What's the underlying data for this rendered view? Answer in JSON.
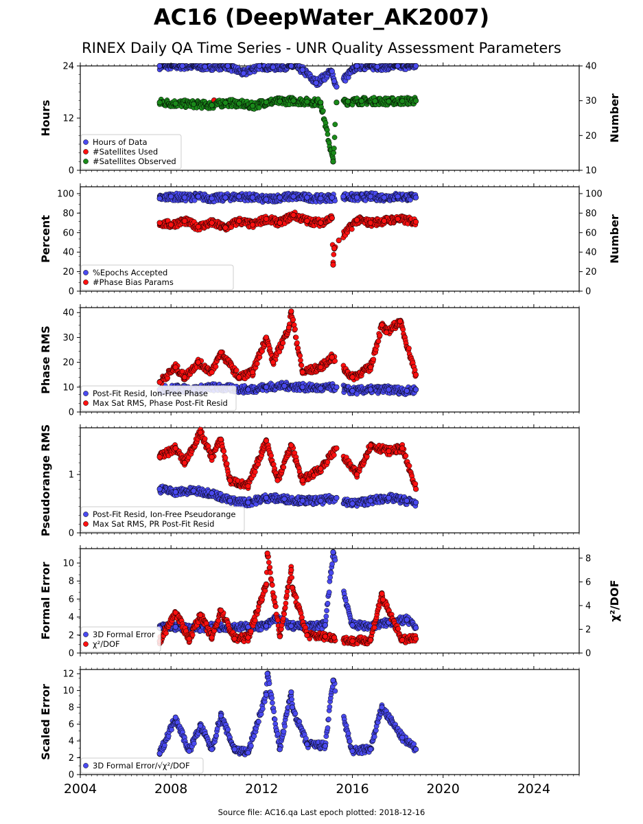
{
  "title": "AC16 (DeepWater_AK2007)",
  "subtitle": "RINEX Daily QA Time Series - UNR Quality Assessment Parameters",
  "footer": "Source file: AC16.qa Last epoch plotted: 2018-12-16",
  "colors": {
    "blue": "#4a4af0",
    "red": "#ff1010",
    "green": "#1a8a1a",
    "edge": "#000000"
  },
  "chart_data": [
    {
      "type": "scatter",
      "ylabel": "Hours",
      "y2label": "Number",
      "xlim": [
        2004,
        2026
      ],
      "ylim": [
        0,
        24
      ],
      "yticks": [
        "0",
        "12",
        "24"
      ],
      "y2lim": [
        10,
        40
      ],
      "y2ticks": [
        "10",
        "20",
        "30",
        "40"
      ],
      "legend": "lower-left",
      "series": [
        {
          "name": "Hours of Data",
          "color": "blue",
          "axis": "left",
          "x": [
            2007.5,
            2008.5,
            2009.5,
            2010.5,
            2011.2,
            2011.9,
            2012.5,
            2013.3,
            2013.8,
            2014.4,
            2015.1,
            2015.2,
            2015.3,
            2016.2,
            2017.1,
            2018.0,
            2018.8
          ],
          "y": [
            24,
            24,
            23.8,
            24,
            22.3,
            24,
            23.7,
            24,
            23.1,
            20.1,
            22.8,
            20.5,
            19.2,
            24,
            23.8,
            24,
            24
          ]
        },
        {
          "name": "#Satellites Used",
          "color": "red",
          "axis": "right",
          "x": [
            2009.9,
            2015.15
          ],
          "y": [
            30.1,
            12.5
          ]
        },
        {
          "name": "#Satellites Observed",
          "color": "green",
          "axis": "right",
          "x": [
            2007.5,
            2008.2,
            2009.0,
            2009.8,
            2010.4,
            2011.0,
            2011.6,
            2012.2,
            2012.8,
            2013.4,
            2014.0,
            2014.6,
            2015.15,
            2015.3,
            2015.8,
            2016.4,
            2017.0,
            2017.6,
            2018.2,
            2018.8
          ],
          "y": [
            29.5,
            29.2,
            29.0,
            28.7,
            29.4,
            29.2,
            28.5,
            29.6,
            29.8,
            30.0,
            29.7,
            29.5,
            12.5,
            29.5,
            29.8,
            29.9,
            29.9,
            29.8,
            29.9,
            30.0
          ]
        }
      ]
    },
    {
      "type": "scatter",
      "ylabel": "Percent",
      "y2label": "Number",
      "xlim": [
        2004,
        2026
      ],
      "ylim": [
        0,
        107
      ],
      "yticks": [
        "0",
        "20",
        "40",
        "60",
        "80",
        "100"
      ],
      "y2lim": [
        0,
        107
      ],
      "y2ticks": [
        "0",
        "20",
        "40",
        "60",
        "80",
        "100"
      ],
      "legend": "lower-left",
      "series": [
        {
          "name": "%Epochs Accepted",
          "color": "blue",
          "axis": "left",
          "x": [
            2007.5,
            2008.0,
            2008.6,
            2009.2,
            2009.8,
            2010.4,
            2011.0,
            2011.6,
            2012.2,
            2012.8,
            2013.4,
            2014.0,
            2014.6,
            2015.1,
            2015.6,
            2016.2,
            2016.8,
            2017.4,
            2018.0,
            2018.8
          ],
          "y": [
            95,
            97,
            96,
            97,
            95,
            96,
            97,
            96,
            94,
            96,
            97,
            96,
            95,
            96,
            97,
            96,
            97,
            96,
            97,
            96
          ]
        },
        {
          "name": "#Phase Bias Params",
          "color": "red",
          "axis": "right",
          "x": [
            2007.5,
            2008.0,
            2008.6,
            2009.2,
            2009.8,
            2010.4,
            2011.0,
            2011.6,
            2012.2,
            2012.8,
            2013.4,
            2014.0,
            2014.6,
            2015.1,
            2015.15,
            2015.2,
            2015.4,
            2016.2,
            2016.8,
            2017.4,
            2018.0,
            2018.8
          ],
          "y": [
            70,
            68,
            72,
            66,
            70,
            65,
            72,
            68,
            74,
            70,
            78,
            72,
            70,
            75,
            27,
            44,
            52,
            73,
            70,
            72,
            74,
            71
          ]
        }
      ]
    },
    {
      "type": "scatter",
      "ylabel": "Phase RMS",
      "xlim": [
        2004,
        2026
      ],
      "ylim": [
        0,
        42
      ],
      "yticks": [
        "0",
        "10",
        "20",
        "30",
        "40"
      ],
      "legend": "lower-left",
      "series": [
        {
          "name": "Post-Fit Resid, Ion-Free Phase",
          "color": "blue",
          "axis": "left",
          "x": [
            2007.5,
            2008.2,
            2009.0,
            2009.8,
            2010.6,
            2011.4,
            2012.2,
            2013.0,
            2013.8,
            2014.6,
            2015.3,
            2016.0,
            2016.8,
            2017.6,
            2018.4,
            2018.8
          ],
          "y": [
            9,
            9.5,
            9,
            10,
            9.5,
            9,
            10,
            10.5,
            10,
            9.5,
            10,
            8.5,
            9,
            9,
            8.5,
            9
          ]
        },
        {
          "name": "Max Sat RMS, Phase Post-Fit Resid",
          "color": "red",
          "axis": "left",
          "x": [
            2007.5,
            2008.2,
            2008.6,
            2009.2,
            2009.8,
            2010.2,
            2011.0,
            2011.6,
            2012.2,
            2012.5,
            2013.2,
            2013.3,
            2013.8,
            2014.6,
            2015.1,
            2016.0,
            2016.8,
            2017.3,
            2017.5,
            2018.1,
            2018.8
          ],
          "y": [
            12,
            18,
            14,
            20,
            16,
            24,
            14,
            16,
            30,
            20,
            34,
            40.5,
            16,
            18,
            22,
            14,
            18,
            35,
            32,
            36.5,
            15
          ]
        }
      ]
    },
    {
      "type": "scatter",
      "ylabel": "Pseudorange RMS",
      "xlim": [
        2004,
        2026
      ],
      "ylim": [
        0,
        1.8
      ],
      "yticks": [
        "0",
        "1"
      ],
      "legend": "lower-left",
      "series": [
        {
          "name": "Post-Fit Resid, Ion-Free Pseudorange",
          "color": "blue",
          "axis": "left",
          "x": [
            2007.5,
            2008.2,
            2009.0,
            2009.8,
            2010.6,
            2011.4,
            2012.2,
            2013.0,
            2013.8,
            2014.6,
            2015.3,
            2016.0,
            2016.8,
            2017.6,
            2018.4,
            2018.8
          ],
          "y": [
            0.75,
            0.7,
            0.72,
            0.68,
            0.55,
            0.52,
            0.6,
            0.58,
            0.55,
            0.55,
            0.6,
            0.5,
            0.55,
            0.6,
            0.55,
            0.52
          ]
        },
        {
          "name": "Max Sat RMS, PR Post-Fit Resid",
          "color": "red",
          "axis": "left",
          "x": [
            2007.5,
            2008.2,
            2008.6,
            2009.3,
            2009.8,
            2010.2,
            2010.6,
            2011.4,
            2012.2,
            2012.7,
            2013.3,
            2013.8,
            2014.6,
            2015.3,
            2016.2,
            2016.8,
            2017.6,
            2018.2,
            2018.8
          ],
          "y": [
            1.3,
            1.45,
            1.2,
            1.72,
            1.3,
            1.6,
            0.9,
            0.8,
            1.58,
            0.9,
            1.5,
            0.9,
            1.1,
            1.45,
            1.0,
            1.5,
            1.4,
            1.45,
            0.75
          ]
        }
      ]
    },
    {
      "type": "scatter",
      "ylabel": "Formal Error",
      "y2label": "χ²/DOF",
      "xlim": [
        2004,
        2026
      ],
      "ylim": [
        0,
        11.6
      ],
      "yticks": [
        "0",
        "2",
        "4",
        "6",
        "8",
        "10"
      ],
      "y2lim": [
        0,
        8.8
      ],
      "y2ticks": [
        "0",
        "2",
        "4",
        "6",
        "8"
      ],
      "legend": "lower-left",
      "series": [
        {
          "name": "3D Formal Error",
          "color": "blue",
          "axis": "left",
          "x": [
            2007.5,
            2008.2,
            2009.0,
            2009.8,
            2010.6,
            2011.4,
            2012.2,
            2012.6,
            2013.3,
            2014.0,
            2014.8,
            2015.15,
            2016.0,
            2016.8,
            2017.6,
            2018.4,
            2018.8
          ],
          "y": [
            2.8,
            2.9,
            2.8,
            2.9,
            2.9,
            2.9,
            3.0,
            3.9,
            3.0,
            3.0,
            3.1,
            11.2,
            3.1,
            3.0,
            3.4,
            3.7,
            2.8
          ]
        },
        {
          "name": "χ²/DOF",
          "color": "red",
          "axis": "right",
          "x": [
            2007.5,
            2008.2,
            2008.8,
            2009.3,
            2009.8,
            2010.2,
            2010.8,
            2011.4,
            2012.2,
            2012.25,
            2012.8,
            2013.3,
            2013.35,
            2014.0,
            2014.8,
            2015.2,
            2016.0,
            2016.8,
            2017.3,
            2017.35,
            2018.2,
            2018.8
          ],
          "y": [
            1.0,
            3.4,
            1.2,
            3.2,
            1.3,
            3.6,
            1.2,
            1.3,
            5.8,
            8.4,
            1.4,
            7.0,
            5.5,
            1.5,
            1.4,
            1.3,
            1.0,
            1.1,
            5.0,
            4.5,
            1.1,
            1.2
          ]
        }
      ]
    },
    {
      "type": "scatter",
      "ylabel": "Scaled Error",
      "xlim": [
        2004,
        2026
      ],
      "ylim": [
        0,
        12.5
      ],
      "yticks": [
        "0",
        "2",
        "4",
        "6",
        "8",
        "10",
        "12"
      ],
      "xticks": [
        "2004",
        "2008",
        "2012",
        "2016",
        "2020",
        "2024"
      ],
      "legend": "lower-left",
      "series": [
        {
          "name": "3D Formal Error/√χ²/DOF",
          "color": "blue",
          "axis": "left",
          "x": [
            2007.5,
            2008.2,
            2008.8,
            2009.3,
            2009.8,
            2010.2,
            2010.8,
            2011.4,
            2012.2,
            2012.25,
            2012.8,
            2013.3,
            2013.35,
            2014.0,
            2014.8,
            2015.15,
            2016.0,
            2016.8,
            2017.3,
            2018.2,
            2018.8
          ],
          "y": [
            2.5,
            6.8,
            2.8,
            5.8,
            3.0,
            7.0,
            3.0,
            2.6,
            9.5,
            12.0,
            3.0,
            9.8,
            8.0,
            3.6,
            3.4,
            11.2,
            2.8,
            3.0,
            8.0,
            4.4,
            3.0
          ]
        }
      ]
    }
  ]
}
